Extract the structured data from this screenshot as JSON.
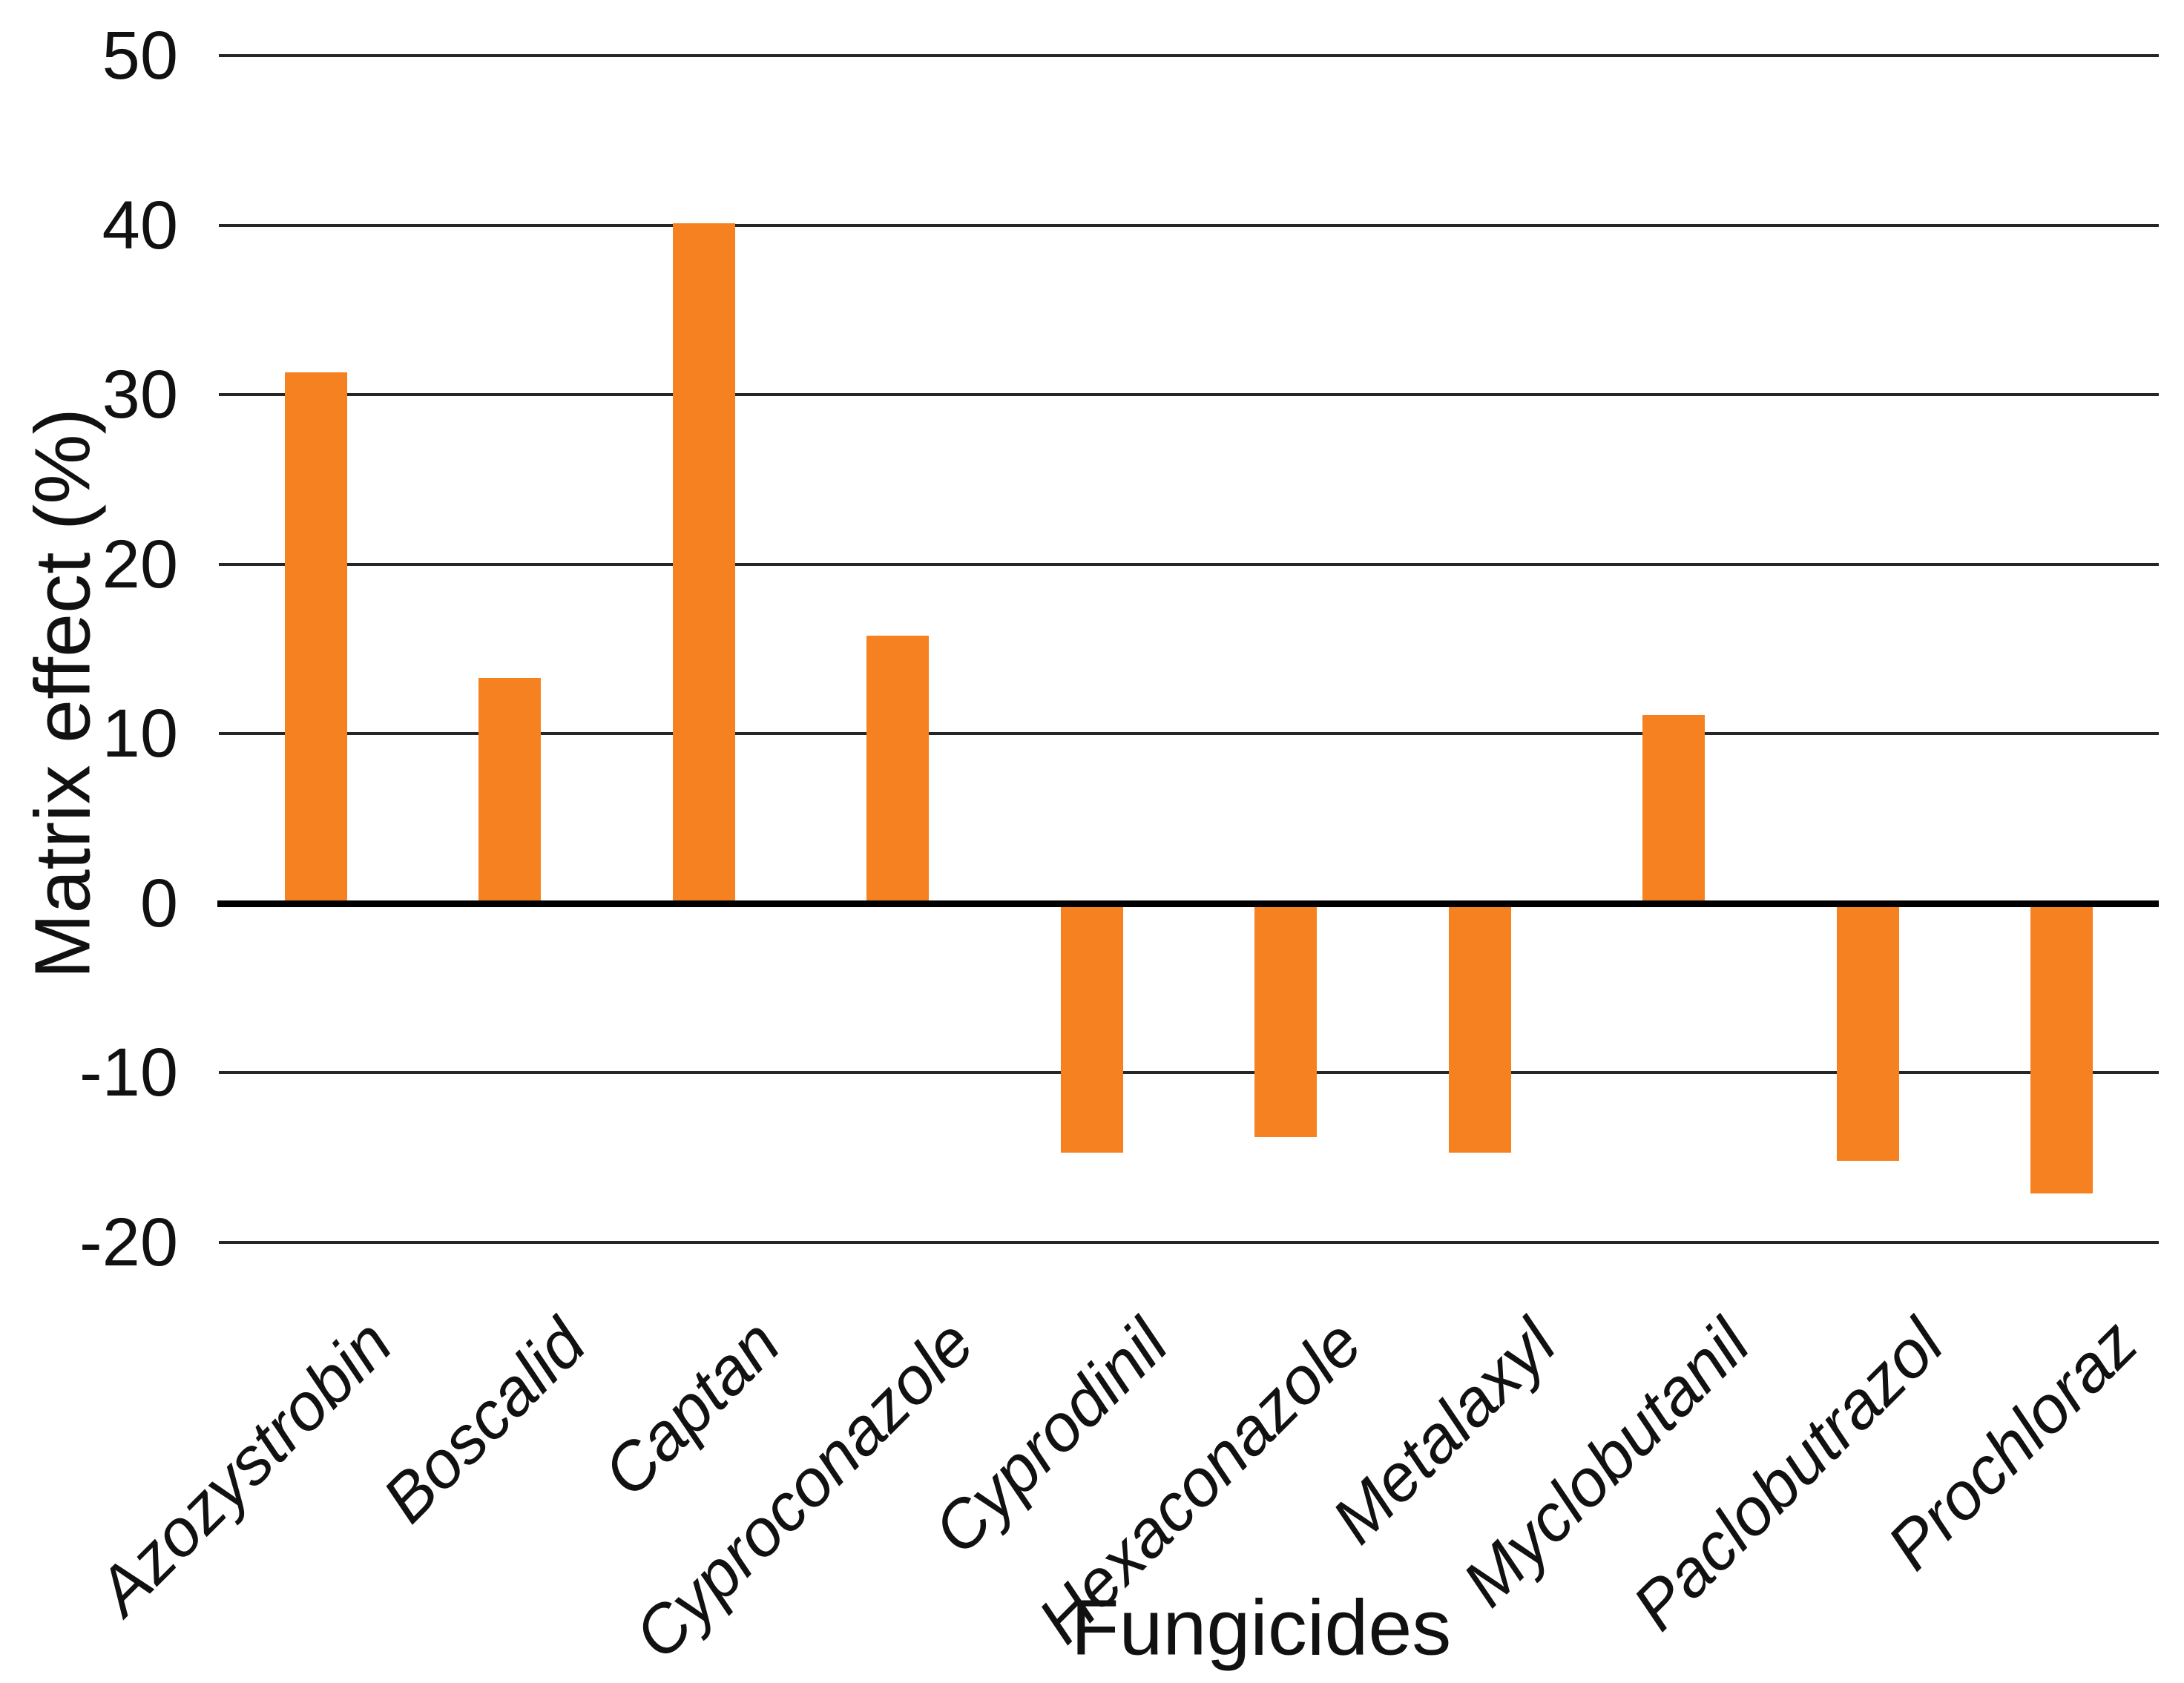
{
  "chart_data": {
    "type": "bar",
    "title": "",
    "categories": [
      "Azozystrobin",
      "Boscalid",
      "Captan",
      "Cyproconazole",
      "Cyprodinil",
      "Hexaconazole",
      "Metalaxyl",
      "Myclobutanil",
      "Paclobutrazol",
      "Prochloraz"
    ],
    "values": [
      31.3,
      13.3,
      40.1,
      15.8,
      -14.7,
      -13.8,
      -14.7,
      11.1,
      -15.2,
      -17.1
    ],
    "xlabel": "Fungicides",
    "ylabel": "Matrix effect (%)",
    "ylim": [
      -20,
      50
    ],
    "yticks": [
      50,
      40,
      30,
      20,
      10,
      0,
      -10,
      -20
    ],
    "ytick_step": 10,
    "grid": "horizontal",
    "legend_position": "none",
    "bar_color": "#F68120",
    "gridline_color": "#262626",
    "zero_axis_color": "#000000",
    "text_color": "#111111"
  }
}
